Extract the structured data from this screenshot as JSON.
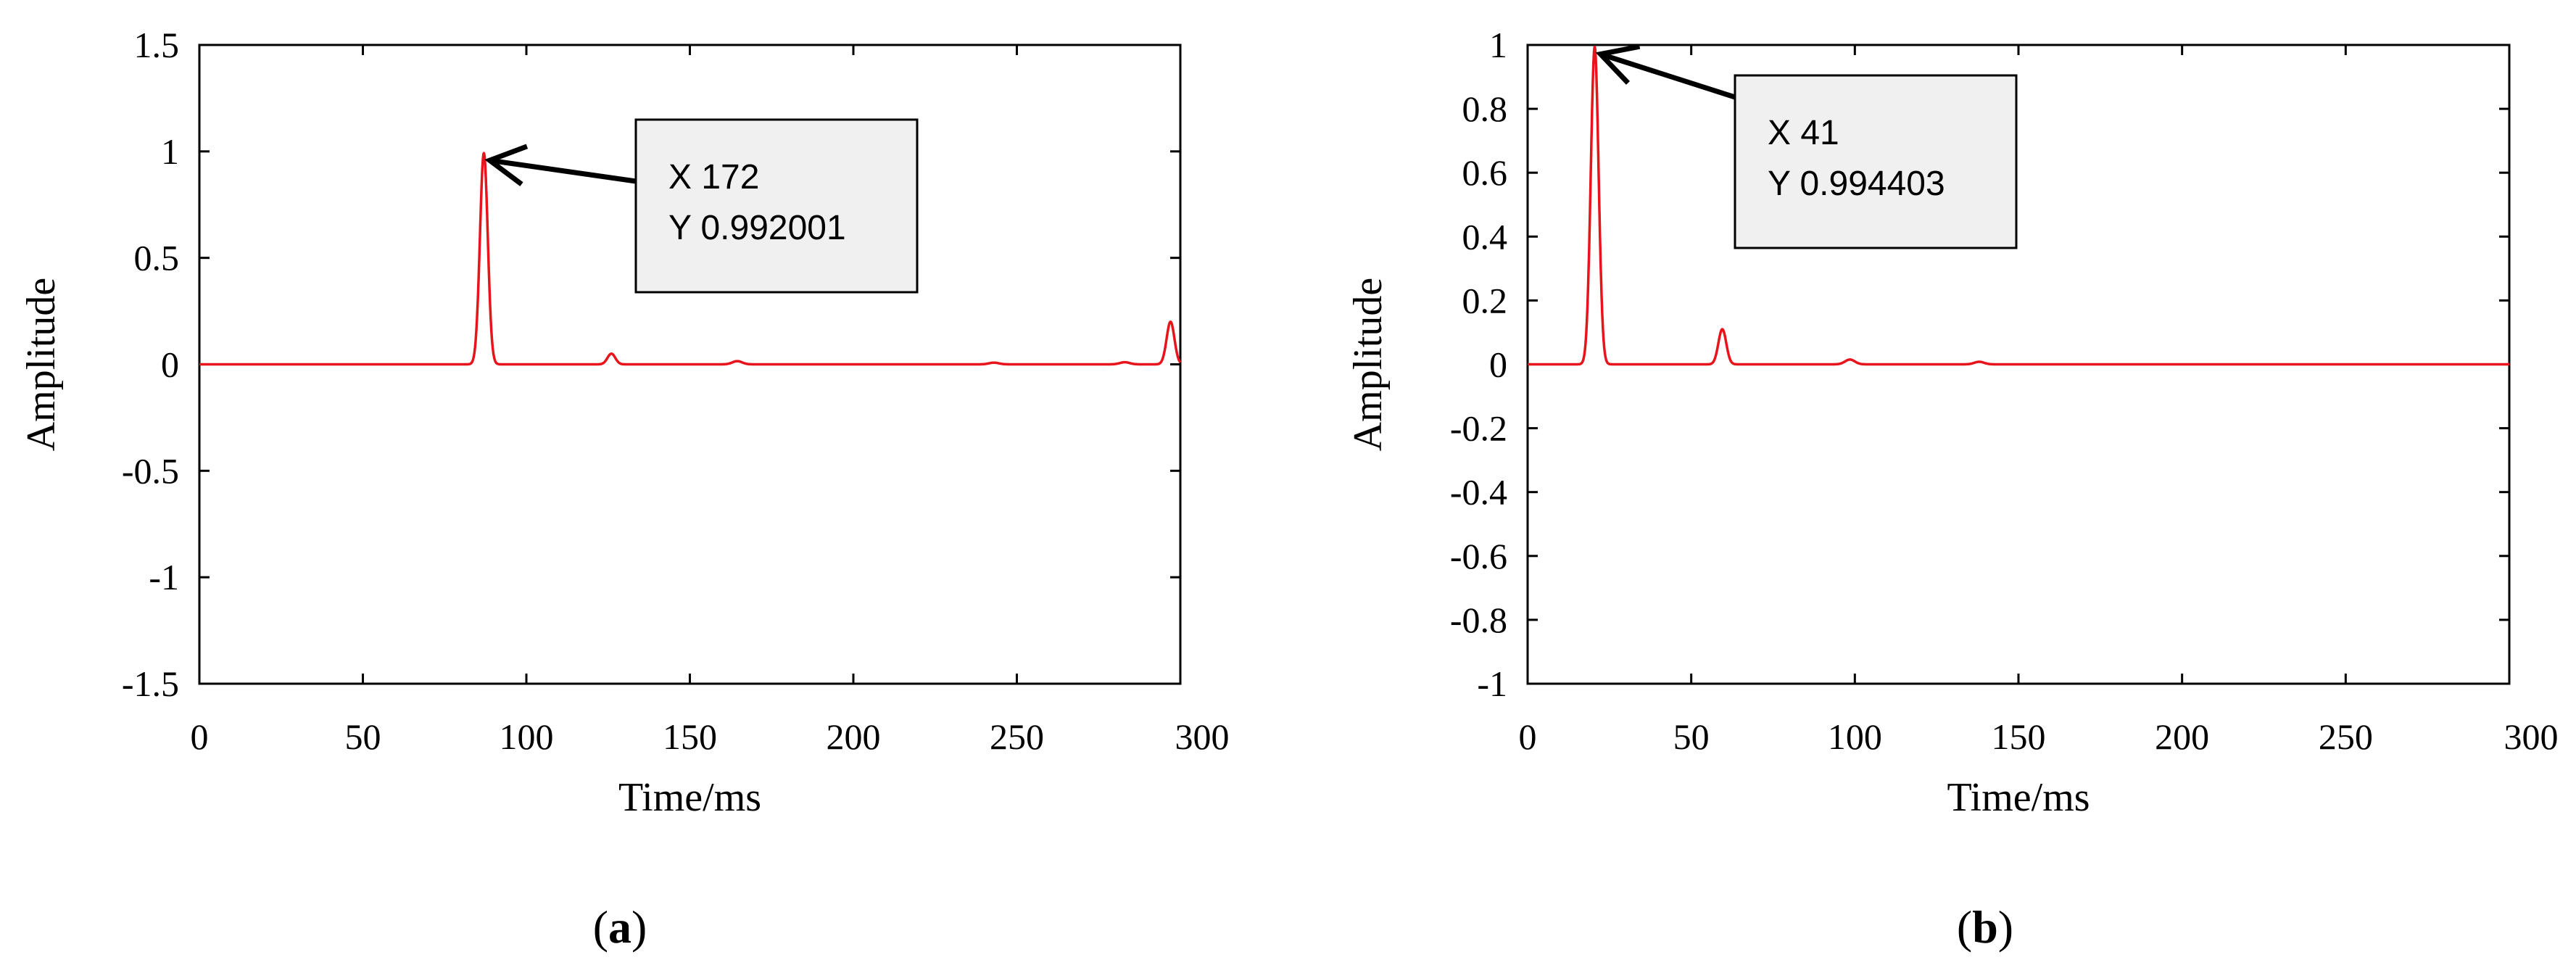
{
  "chart_data": [
    {
      "type": "line",
      "panel_label": "(a)",
      "xlabel": "Time/ms",
      "ylabel": "Amplitude",
      "xlim": [
        0,
        300
      ],
      "ylim": [
        -1.5,
        1.5
      ],
      "xticks": [
        0,
        50,
        100,
        150,
        200,
        250,
        300
      ],
      "xtick_labels": [
        "0",
        "50",
        "100",
        "150",
        "200",
        "250",
        "300"
      ],
      "yticks": [
        1.5,
        1,
        0.5,
        0,
        -0.5,
        -1,
        -1.5
      ],
      "ytick_labels": [
        "1.5",
        "1",
        "0.5",
        "0",
        "-0.5",
        "-1",
        "-1.5"
      ],
      "grid": false,
      "line_color": "#e8141c",
      "peaks": [
        {
          "t": 87,
          "amp": 0.992,
          "width": 1.2
        },
        {
          "t": 126,
          "amp": 0.05,
          "width": 1.2
        },
        {
          "t": 164.5,
          "amp": 0.015,
          "width": 1.5
        },
        {
          "t": 243,
          "amp": 0.008,
          "width": 1.5
        },
        {
          "t": 283,
          "amp": 0.01,
          "width": 1.5
        },
        {
          "t": 297,
          "amp": 0.2,
          "width": 1.2
        }
      ],
      "callout": {
        "line1": "X 172",
        "line2": "Y 0.992001",
        "target_t": 87,
        "target_amp": 0.992
      }
    },
    {
      "type": "line",
      "panel_label": "(b)",
      "xlabel": "Time/ms",
      "ylabel": "Amplitude",
      "xlim": [
        0,
        300
      ],
      "ylim": [
        -1,
        1
      ],
      "xticks": [
        0,
        50,
        100,
        150,
        200,
        250,
        300
      ],
      "xtick_labels": [
        "0",
        "50",
        "100",
        "150",
        "200",
        "250",
        "300"
      ],
      "yticks": [
        1,
        0.8,
        0.6,
        0.4,
        0.2,
        0,
        -0.2,
        -0.4,
        -0.6,
        -0.8,
        -1
      ],
      "ytick_labels": [
        "1",
        "0.8",
        "0.6",
        "0.4",
        "0.2",
        "0",
        "-0.2",
        "-0.4",
        "-0.6",
        "-0.8",
        "-1"
      ],
      "grid": false,
      "line_color": "#e8141c",
      "peaks": [
        {
          "t": 20.5,
          "amp": 0.994,
          "width": 1.2
        },
        {
          "t": 59.5,
          "amp": 0.11,
          "width": 1.2
        },
        {
          "t": 98.5,
          "amp": 0.015,
          "width": 1.5
        },
        {
          "t": 138,
          "amp": 0.008,
          "width": 1.5
        }
      ],
      "callout": {
        "line1": "X 41",
        "line2": "Y 0.994403",
        "target_t": 20.5,
        "target_amp": 0.994
      }
    }
  ]
}
